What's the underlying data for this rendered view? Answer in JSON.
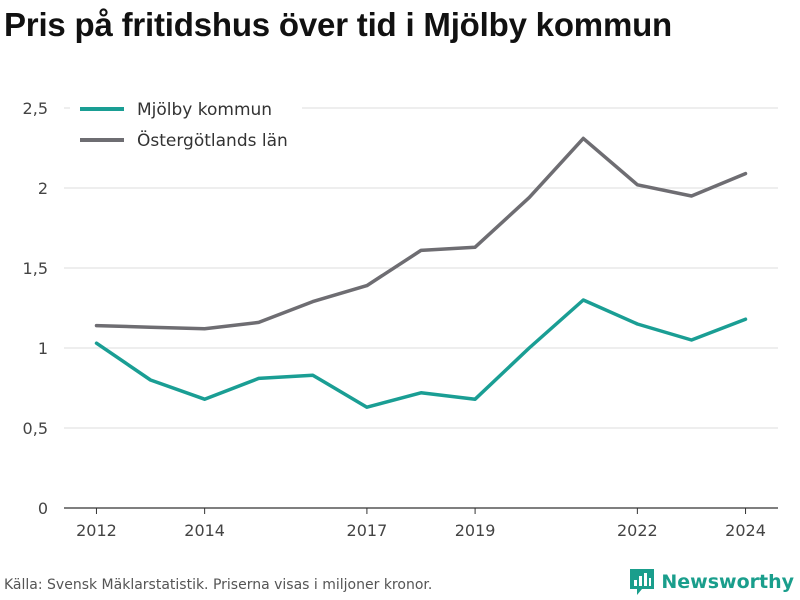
{
  "title": "Pris på fritidshus över tid i Mjölby kommun",
  "source": "Källa: Svensk Mäklarstatistik. Priserna visas i miljoner kronor.",
  "brand": {
    "name": "Newsworthy",
    "icon": "bar-chart-logo-icon",
    "color": "#1a9e8c"
  },
  "chart_data": {
    "type": "line",
    "xlim": [
      2011.4,
      2024.6
    ],
    "ylim": [
      0,
      2.5
    ],
    "yticks": [
      {
        "value": 0,
        "label": "0"
      },
      {
        "value": 0.5,
        "label": "0,5"
      },
      {
        "value": 1,
        "label": "1"
      },
      {
        "value": 1.5,
        "label": "1,5"
      },
      {
        "value": 2,
        "label": "2"
      },
      {
        "value": 2.5,
        "label": "2,5"
      }
    ],
    "xticks": [
      {
        "value": 2012,
        "label": "2012"
      },
      {
        "value": 2014,
        "label": "2014"
      },
      {
        "value": 2017,
        "label": "2017"
      },
      {
        "value": 2019,
        "label": "2019"
      },
      {
        "value": 2022,
        "label": "2022"
      },
      {
        "value": 2024,
        "label": "2024"
      }
    ],
    "grid": true,
    "legend_position": "top-left",
    "x": [
      2012,
      2013,
      2014,
      2015,
      2016,
      2017,
      2018,
      2019,
      2020,
      2021,
      2022,
      2023,
      2024
    ],
    "series": [
      {
        "name": "Mjölby kommun",
        "color": "#1a9e94",
        "values": [
          1.03,
          0.8,
          0.68,
          0.81,
          0.83,
          0.63,
          0.72,
          0.68,
          1.0,
          1.3,
          1.15,
          1.05,
          1.18
        ]
      },
      {
        "name": "Östergötlands län",
        "color": "#6e6d72",
        "values": [
          1.14,
          1.13,
          1.12,
          1.16,
          1.29,
          1.39,
          1.61,
          1.63,
          1.94,
          2.31,
          2.02,
          1.95,
          2.09
        ]
      }
    ]
  }
}
